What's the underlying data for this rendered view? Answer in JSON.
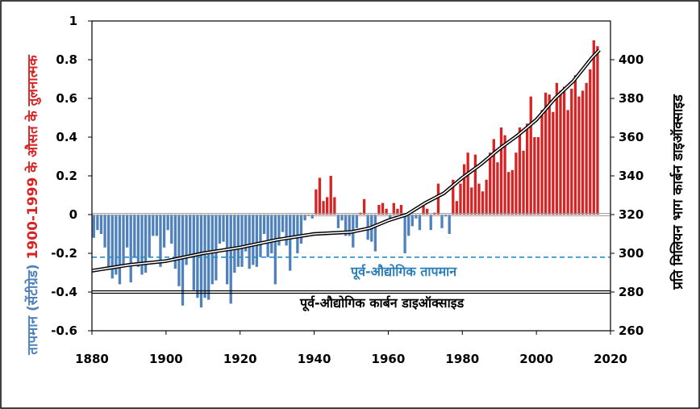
{
  "chart_data": {
    "type": "bar",
    "title": "",
    "xlabel": "",
    "xlim": [
      1880,
      2020
    ],
    "ylim": [
      -0.6,
      1.0
    ],
    "y2lim": [
      260,
      420
    ],
    "grid": false,
    "x_ticks": [
      "1880",
      "1900",
      "1920",
      "1940",
      "1960",
      "1980",
      "2000",
      "2020"
    ],
    "y_ticks": [
      "1",
      "0.8",
      "0.6",
      "0.4",
      "0.2",
      "0",
      "-0.2",
      "-0.4",
      "-0.6"
    ],
    "y2_ticks": [
      "400",
      "380",
      "360",
      "340",
      "320",
      "300",
      "280",
      "260"
    ],
    "ylabel_colored": "1900-1999 के औसत के तुलनात्मक",
    "ylabel_blue": "तापमान (सेंटीग्रेड)",
    "y2label": "प्रति मिलियन भाग कार्बन डाइऑक्साइड",
    "annotations": {
      "preindustrial_temp": "पूर्व-औद्योगिक तापमान",
      "preindustrial_co2": "पूर्व-औद्योगिक कार्बन डाइऑक्साइड"
    },
    "preindustrial_temp_value": -0.22,
    "preindustrial_co2_value": 280,
    "colors": {
      "positive": "#d62424",
      "negative": "#4f81bd",
      "temp_line": "#2b8cc4",
      "co2_line": "#000000",
      "ylabel_red": "#d62424",
      "ylabel_blue": "#4f81bd"
    },
    "temperature_anomaly": {
      "start_year": 1880,
      "values": [
        -0.12,
        -0.08,
        -0.1,
        -0.17,
        -0.28,
        -0.33,
        -0.31,
        -0.36,
        -0.27,
        -0.17,
        -0.35,
        -0.22,
        -0.27,
        -0.31,
        -0.3,
        -0.22,
        -0.11,
        -0.11,
        -0.27,
        -0.17,
        -0.08,
        -0.15,
        -0.28,
        -0.37,
        -0.47,
        -0.26,
        -0.22,
        -0.39,
        -0.43,
        -0.48,
        -0.43,
        -0.44,
        -0.36,
        -0.34,
        -0.15,
        -0.14,
        -0.36,
        -0.46,
        -0.3,
        -0.27,
        -0.27,
        -0.19,
        -0.28,
        -0.26,
        -0.27,
        -0.22,
        -0.1,
        -0.22,
        -0.2,
        -0.36,
        -0.16,
        -0.09,
        -0.16,
        -0.29,
        -0.12,
        -0.2,
        -0.15,
        -0.03,
        0.0,
        -0.02,
        0.13,
        0.19,
        0.07,
        0.09,
        0.2,
        0.09,
        -0.07,
        -0.03,
        -0.11,
        -0.11,
        -0.17,
        -0.07,
        0.01,
        0.08,
        -0.13,
        -0.14,
        -0.19,
        0.05,
        0.06,
        0.03,
        -0.03,
        0.06,
        0.03,
        0.05,
        -0.2,
        -0.11,
        -0.06,
        -0.02,
        -0.08,
        0.05,
        0.03,
        -0.08,
        0.01,
        0.16,
        -0.07,
        -0.01,
        -0.1,
        0.18,
        0.07,
        0.16,
        0.26,
        0.32,
        0.14,
        0.31,
        0.16,
        0.12,
        0.18,
        0.32,
        0.39,
        0.27,
        0.45,
        0.41,
        0.22,
        0.23,
        0.32,
        0.45,
        0.33,
        0.47,
        0.61,
        0.4,
        0.4,
        0.54,
        0.63,
        0.62,
        0.53,
        0.68,
        0.64,
        0.66,
        0.54,
        0.65,
        0.72,
        0.61,
        0.64,
        0.68,
        0.75,
        0.9,
        0.87
      ]
    },
    "co2_ppm": {
      "x": [
        1880,
        1890,
        1900,
        1910,
        1920,
        1930,
        1940,
        1950,
        1955,
        1960,
        1965,
        1970,
        1975,
        1980,
        1985,
        1990,
        1995,
        2000,
        2005,
        2010,
        2015,
        2017
      ],
      "values": [
        291,
        294,
        296,
        300,
        303,
        307,
        310,
        311,
        313,
        317,
        320,
        326,
        331,
        339,
        346,
        354,
        361,
        369,
        380,
        389,
        401,
        405
      ]
    }
  }
}
